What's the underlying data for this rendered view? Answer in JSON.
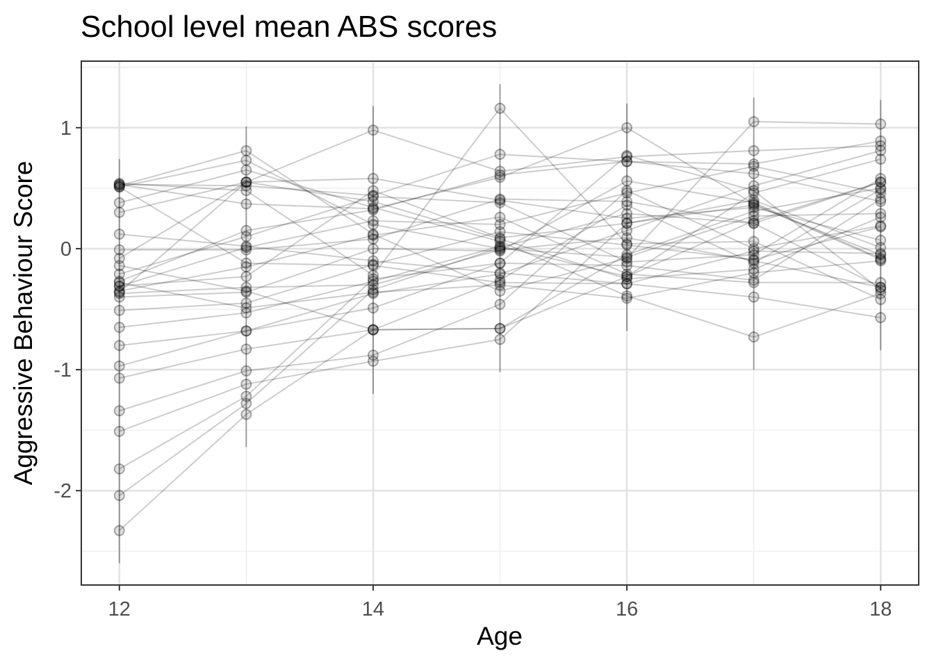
{
  "chart_data": {
    "type": "line",
    "title": "School level mean ABS scores",
    "xlabel": "Age",
    "ylabel": "Aggressive Behaviour Score",
    "xlim": [
      11.7,
      18.3
    ],
    "ylim": [
      -2.78,
      1.55
    ],
    "x_ticks": [
      12,
      14,
      16,
      18
    ],
    "y_ticks": [
      1,
      0,
      -1,
      -2
    ],
    "x": [
      12,
      13,
      14,
      15,
      16,
      17,
      18
    ],
    "grid": true,
    "legend": "none",
    "series": [
      {
        "values": [
          -2.33,
          -1.37,
          -0.67,
          -0.66,
          -0.23,
          0.23,
          0.55
        ]
      },
      {
        "values": [
          -2.04,
          -1.28,
          -0.34,
          0.01,
          0.29,
          0.21,
          0.55
        ]
      },
      {
        "values": [
          -1.82,
          -1.22,
          -0.25,
          -0.12,
          0.77,
          0.48,
          -0.34
        ]
      },
      {
        "values": [
          -1.51,
          -1.12,
          -0.93,
          -0.75,
          0.21,
          0.36,
          -0.05
        ]
      },
      {
        "values": [
          -1.34,
          -1.01,
          -0.88,
          -0.46,
          0.48,
          0.0,
          0.19
        ]
      },
      {
        "values": [
          -1.07,
          -0.83,
          -0.67,
          -0.26,
          0.36,
          -0.12,
          0.49
        ]
      },
      {
        "values": [
          -0.97,
          -0.68,
          -0.49,
          -0.12,
          -0.14,
          -0.26,
          0.41
        ]
      },
      {
        "values": [
          -0.8,
          -0.68,
          -0.37,
          -0.21,
          0.15,
          0.52,
          0.81
        ]
      },
      {
        "values": [
          -0.65,
          -0.53,
          -0.27,
          0.02,
          -0.23,
          0.46,
          0.74
        ]
      },
      {
        "values": [
          -0.51,
          -0.45,
          -0.13,
          0.14,
          0.03,
          -0.09,
          0.18
        ]
      },
      {
        "values": [
          -0.4,
          -0.36,
          0.0,
          -0.02,
          0.56,
          0.38,
          -0.08
        ]
      },
      {
        "values": [
          -0.35,
          -0.15,
          0.11,
          0.26,
          -0.21,
          -0.28,
          -0.28
        ]
      },
      {
        "values": [
          -0.31,
          0.01,
          0.23,
          0.2,
          0.46,
          0.68,
          0.46
        ]
      },
      {
        "values": [
          -0.27,
          0.15,
          0.32,
          0.61,
          0.72,
          0.62,
          0.39
        ]
      },
      {
        "values": [
          -0.21,
          0.1,
          0.43,
          0.38,
          -0.11,
          -0.05,
          0.58
        ]
      },
      {
        "values": [
          -0.08,
          0.55,
          0.98,
          0.64,
          0.76,
          0.81,
          0.85
        ]
      },
      {
        "values": [
          0.12,
          0.02,
          -0.1,
          -0.2,
          -0.29,
          -0.4,
          -0.57
        ]
      },
      {
        "values": [
          0.3,
          0.55,
          0.58,
          0.4,
          0.25,
          0.34,
          0.07
        ]
      },
      {
        "values": [
          0.38,
          0.65,
          0.34,
          0.06,
          -0.39,
          -0.73,
          -0.37
        ]
      },
      {
        "values": [
          0.51,
          0.73,
          0.2,
          0.0,
          -0.07,
          0.27,
          0.29
        ]
      },
      {
        "values": [
          0.53,
          0.52,
          0.44,
          0.78,
          0.72,
          0.7,
          0.89
        ]
      },
      {
        "values": [
          0.54,
          0.48,
          -0.22,
          1.16,
          0.04,
          0.06,
          -0.42
        ]
      },
      {
        "values": [
          0.52,
          0.81,
          0.12,
          -0.35,
          -0.08,
          1.05,
          1.03
        ]
      },
      {
        "values": [
          0.51,
          -0.12,
          -0.14,
          -0.28,
          -0.29,
          -0.02,
          -0.04
        ]
      },
      {
        "values": [
          0.53,
          0.37,
          0.33,
          0.59,
          1.0,
          0.37,
          -0.09
        ]
      },
      {
        "values": [
          -0.01,
          -0.01,
          0.08,
          0.41,
          0.39,
          0.21,
          -0.32
        ]
      },
      {
        "values": [
          -0.14,
          -0.35,
          -0.67,
          -0.66,
          -0.05,
          0.31,
          0.5
        ]
      },
      {
        "values": [
          -0.31,
          -0.23,
          0.48,
          0.09,
          0.21,
          0.4,
          0.01
        ]
      },
      {
        "values": [
          -0.28,
          -0.49,
          -0.36,
          -0.3,
          -0.41,
          -0.2,
          -0.1
        ]
      },
      {
        "values": [
          -0.36,
          0.55,
          0.39,
          0.08,
          -0.25,
          -0.17,
          0.26
        ]
      },
      {
        "values": [
          -0.37,
          -0.32,
          -0.3,
          -0.01,
          0.09,
          -0.1,
          -0.32
        ]
      }
    ]
  }
}
